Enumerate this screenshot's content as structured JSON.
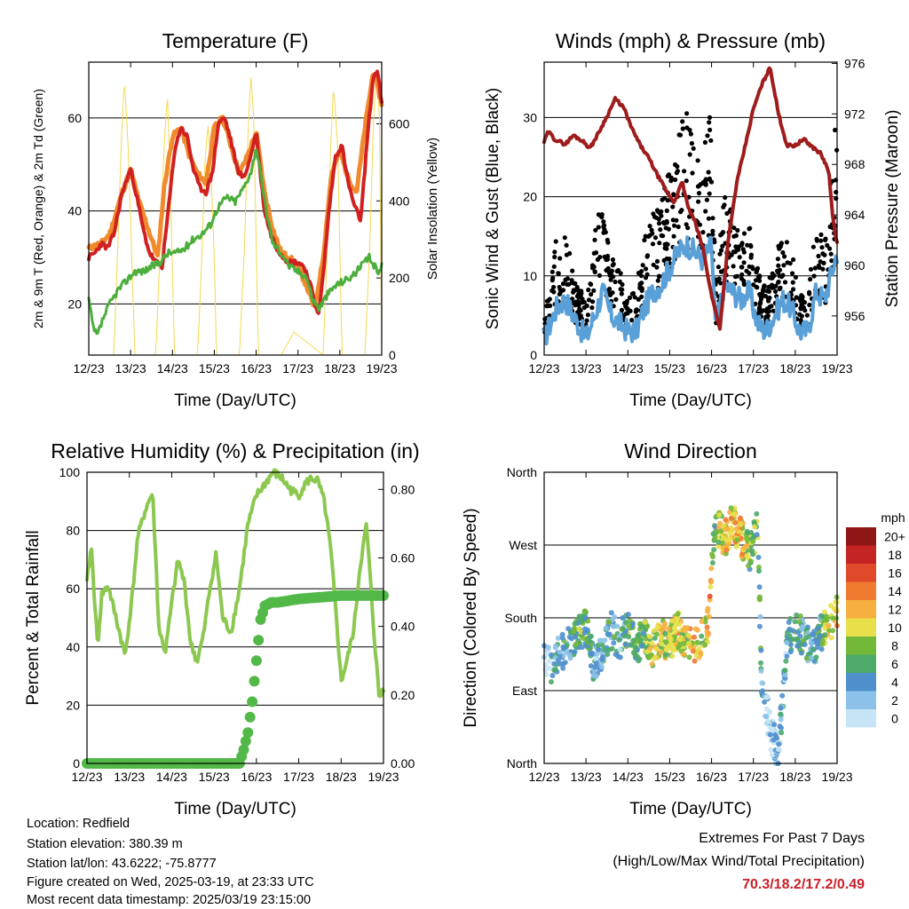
{
  "colors": {
    "temp_2m": "#d02020",
    "temp_9m": "#f08a2c",
    "dewpoint": "#4cae3c",
    "insolation": "#f5d850",
    "wind_sonic": "#5aa0d8",
    "wind_gust": "#000000",
    "pressure": "#9e1c1c",
    "rh": "#8cc850",
    "precip": "#52b848"
  },
  "panels": {
    "temperature": {
      "title": "Temperature (F)",
      "xlabel": "Time (Day/UTC)",
      "ylabel_left": "2m & 9m T (Red, Orange) & 2m Td (Green)",
      "ylabel_right": "Solar Insolation (Yellow)"
    },
    "winds": {
      "title": "Winds (mph) & Pressure (mb)",
      "xlabel": "Time (Day/UTC)",
      "ylabel_left": "Sonic Wind & Gust (Blue, Black)",
      "ylabel_right": "Station Pressure (Maroon)"
    },
    "humidity": {
      "title": "Relative Humidity (%) & Precipitation (in)",
      "xlabel": "Time (Day/UTC)",
      "ylabel_left": "Percent & Total Rainfall"
    },
    "direction": {
      "title": "Wind Direction",
      "xlabel": "Time (Day/UTC)",
      "ylabel_left": "Direction (Colored By Speed)",
      "legend_title": "mph"
    }
  },
  "station": {
    "location": "Location: Redfield",
    "elevation": "Station elevation: 380.39 m",
    "latlon": "Station lat/lon: 43.6222; -75.8777",
    "created": "Figure created on Wed, 2025-03-19, at 23:33 UTC",
    "latest": "Most recent data timestamp: 2025/03/19 23:15:00"
  },
  "extremes": {
    "line1": "Extremes For Past 7 Days",
    "line2": "(High/Low/Max Wind/Total Precipitation)",
    "values": "70.3/18.2/17.2/0.49"
  },
  "chart_data": [
    {
      "id": "temperature",
      "type": "line",
      "x_ticks": [
        "12/23",
        "13/23",
        "14/23",
        "15/23",
        "16/23",
        "17/23",
        "18/23",
        "19/23"
      ],
      "xlim": [
        0,
        7
      ],
      "ylim": [
        9,
        72
      ],
      "y_ticks": [
        20,
        40,
        60
      ],
      "y2lim": [
        0,
        760
      ],
      "y2_ticks": [
        0,
        200,
        400,
        600
      ],
      "series": [
        {
          "key": "temp_9m",
          "axis": "left",
          "width": 4,
          "x": [
            0,
            0.3,
            0.5,
            0.8,
            1.0,
            1.2,
            1.35,
            1.5,
            1.65,
            1.8,
            2.0,
            2.2,
            2.4,
            2.6,
            2.8,
            3.0,
            3.2,
            3.4,
            3.6,
            3.8,
            4.0,
            4.2,
            4.4,
            4.6,
            4.8,
            5.0,
            5.2,
            5.4,
            5.6,
            5.8,
            6.0,
            6.2,
            6.4,
            6.6,
            6.8,
            7.0
          ],
          "y": [
            32,
            33,
            35,
            44,
            49,
            42,
            38,
            34,
            30,
            45,
            56,
            58,
            52,
            48,
            46,
            58,
            60,
            54,
            48,
            52,
            57,
            44,
            36,
            31,
            30,
            28,
            24,
            19,
            30,
            48,
            53,
            47,
            44,
            58,
            70,
            63
          ]
        },
        {
          "key": "temp_2m",
          "axis": "left",
          "width": 4,
          "x": [
            0,
            0.15,
            0.3,
            0.45,
            0.6,
            0.8,
            1.0,
            1.15,
            1.3,
            1.45,
            1.6,
            1.75,
            1.9,
            2.05,
            2.2,
            2.35,
            2.5,
            2.65,
            2.8,
            2.95,
            3.1,
            3.25,
            3.4,
            3.55,
            3.7,
            3.85,
            4.0,
            4.1,
            4.2,
            4.35,
            4.5,
            4.65,
            4.8,
            5.0,
            5.15,
            5.3,
            5.4,
            5.5,
            5.6,
            5.75,
            5.9,
            6.05,
            6.2,
            6.35,
            6.5,
            6.65,
            6.8,
            6.9,
            7.0
          ],
          "y": [
            30,
            31,
            33,
            32,
            35,
            44,
            49,
            43,
            36,
            31,
            29,
            28,
            40,
            53,
            58,
            56,
            49,
            45,
            44,
            48,
            59,
            60,
            55,
            49,
            47,
            51,
            57,
            48,
            40,
            35,
            32,
            30,
            29,
            29,
            28,
            24,
            20,
            18,
            26,
            41,
            52,
            54,
            46,
            41,
            38,
            55,
            69,
            70,
            63
          ]
        },
        {
          "key": "dewpoint",
          "axis": "left",
          "width": 3,
          "x": [
            0,
            0.1,
            0.2,
            0.35,
            0.5,
            0.7,
            0.9,
            1.1,
            1.3,
            1.5,
            1.7,
            1.9,
            2.1,
            2.3,
            2.5,
            2.7,
            2.9,
            3.1,
            3.3,
            3.5,
            3.7,
            3.9,
            4.0,
            4.2,
            4.4,
            4.6,
            4.8,
            5.0,
            5.2,
            5.35,
            5.5,
            5.7,
            5.9,
            6.1,
            6.3,
            6.5,
            6.7,
            6.9,
            7.0
          ],
          "y": [
            21,
            15,
            13,
            17,
            20,
            23,
            25,
            27,
            27,
            28,
            29,
            31,
            31,
            32,
            34,
            35,
            37,
            41,
            43,
            42,
            45,
            49,
            54,
            42,
            33,
            31,
            28,
            27,
            26,
            21,
            19,
            22,
            24,
            25,
            26,
            28,
            30,
            27,
            28
          ]
        },
        {
          "key": "insolation",
          "axis": "right",
          "width": 1,
          "x": [
            0,
            0.6,
            0.7,
            0.78,
            0.85,
            0.95,
            1.05,
            1.1,
            1.6,
            1.72,
            1.8,
            1.88,
            1.95,
            2.05,
            2.6,
            2.7,
            2.78,
            2.85,
            2.92,
            3.0,
            3.05,
            3.6,
            3.72,
            3.8,
            3.87,
            3.95,
            4.05,
            4.6,
            4.9,
            5.6,
            5.7,
            5.78,
            5.85,
            5.95,
            6.05,
            6.6,
            6.72,
            6.8,
            6.88,
            6.95,
            7.0
          ],
          "y": [
            0,
            0,
            300,
            560,
            720,
            520,
            180,
            0,
            0,
            320,
            540,
            680,
            430,
            0,
            0,
            250,
            510,
            600,
            480,
            250,
            0,
            0,
            280,
            560,
            730,
            600,
            0,
            0,
            60,
            0,
            280,
            540,
            700,
            540,
            0,
            0,
            300,
            600,
            760,
            600,
            0
          ]
        }
      ]
    },
    {
      "id": "winds",
      "type": "scatter+line",
      "x_ticks": [
        "12/23",
        "13/23",
        "14/23",
        "15/23",
        "16/23",
        "17/23",
        "18/23",
        "19/23"
      ],
      "xlim": [
        0,
        7
      ],
      "ylim": [
        0,
        37
      ],
      "y_ticks": [
        0,
        10,
        20,
        30
      ],
      "y2lim": [
        952.9,
        976.1
      ],
      "y2_ticks": [
        956,
        960,
        964,
        968,
        972,
        976
      ],
      "series": [
        {
          "key": "wind_gust",
          "axis": "left",
          "name": "Gust",
          "x": [
            0,
            0.15,
            0.3,
            0.5,
            0.7,
            0.9,
            1.0,
            1.2,
            1.4,
            1.6,
            1.8,
            2.0,
            2.2,
            2.4,
            2.6,
            2.8,
            3.0,
            3.2,
            3.4,
            3.6,
            3.8,
            4.0,
            4.1,
            4.3,
            4.5,
            4.7,
            4.9,
            5.1,
            5.3,
            5.5,
            5.7,
            5.9,
            6.1,
            6.3,
            6.5,
            6.7,
            6.9,
            7.0
          ],
          "y": [
            3,
            7,
            11,
            12,
            7,
            6,
            4,
            11,
            15,
            9,
            8,
            5,
            6,
            11,
            13,
            14,
            17,
            21,
            22,
            20,
            19,
            23,
            6,
            15,
            13,
            11,
            12,
            8,
            6,
            9,
            11,
            10,
            6,
            5,
            13,
            10,
            18,
            26
          ]
        },
        {
          "key": "wind_sonic",
          "axis": "left",
          "name": "Sonic",
          "x": [
            0,
            0.15,
            0.3,
            0.5,
            0.7,
            0.9,
            1.0,
            1.2,
            1.4,
            1.6,
            1.8,
            2.0,
            2.2,
            2.4,
            2.6,
            2.8,
            3.0,
            3.2,
            3.4,
            3.6,
            3.8,
            4.0,
            4.1,
            4.3,
            4.5,
            4.7,
            4.9,
            5.1,
            5.3,
            5.5,
            5.7,
            5.9,
            6.1,
            6.3,
            6.5,
            6.7,
            6.9,
            7.0
          ],
          "y": [
            2,
            4,
            6,
            7,
            5,
            3,
            2,
            5,
            8,
            5,
            4,
            3,
            3,
            6,
            8,
            9,
            11,
            13,
            14,
            13,
            12,
            14,
            3,
            9,
            8,
            7,
            8,
            4,
            3,
            5,
            7,
            6,
            3,
            3,
            8,
            7,
            11,
            13
          ]
        },
        {
          "key": "pressure",
          "axis": "right",
          "name": "Pressure",
          "x": [
            0,
            0.1,
            0.25,
            0.5,
            0.7,
            0.9,
            1.1,
            1.3,
            1.5,
            1.7,
            1.9,
            2.1,
            2.3,
            2.5,
            2.7,
            2.9,
            3.1,
            3.3,
            3.45,
            3.6,
            3.8,
            4.0,
            4.2,
            4.4,
            4.6,
            4.8,
            5.0,
            5.2,
            5.4,
            5.6,
            5.8,
            6.0,
            6.2,
            6.4,
            6.6,
            6.8,
            6.9,
            7.0
          ],
          "y": [
            969.8,
            970.6,
            970,
            969.6,
            970.3,
            969.9,
            969.3,
            970.5,
            971.8,
            973.2,
            972.5,
            970.8,
            969.5,
            968.5,
            967.2,
            966,
            965,
            966.6,
            964.5,
            963.5,
            961.3,
            957.6,
            955,
            962,
            966.5,
            969.4,
            972.4,
            974.3,
            975.7,
            972,
            969.5,
            969.5,
            970,
            969.4,
            968.9,
            967.5,
            963.6,
            961.8
          ]
        }
      ]
    },
    {
      "id": "humidity",
      "type": "line",
      "x_ticks": [
        "12/23",
        "13/23",
        "14/23",
        "15/23",
        "16/23",
        "17/23",
        "18/23",
        "19/23"
      ],
      "xlim": [
        0,
        7
      ],
      "ylim": [
        0,
        100
      ],
      "y_ticks": [
        0,
        20,
        40,
        60,
        80,
        100
      ],
      "y2lim": [
        0,
        0.85
      ],
      "y2_ticks": [
        0.0,
        0.2,
        0.4,
        0.6,
        0.8
      ],
      "series": [
        {
          "key": "rh",
          "axis": "left",
          "width": 4,
          "x": [
            0,
            0.1,
            0.25,
            0.35,
            0.5,
            0.7,
            0.9,
            1.05,
            1.2,
            1.4,
            1.55,
            1.7,
            1.85,
            2.0,
            2.15,
            2.3,
            2.45,
            2.6,
            2.75,
            2.9,
            3.05,
            3.2,
            3.4,
            3.6,
            3.8,
            4.0,
            4.2,
            4.4,
            4.6,
            4.8,
            5.0,
            5.15,
            5.3,
            5.45,
            5.6,
            5.75,
            5.9,
            6.0,
            6.15,
            6.3,
            6.45,
            6.6,
            6.75,
            6.9,
            7.0
          ],
          "y": [
            62,
            75,
            40,
            58,
            61,
            49,
            37,
            55,
            78,
            88,
            93,
            46,
            38,
            55,
            70,
            62,
            41,
            35,
            44,
            60,
            72,
            50,
            45,
            60,
            82,
            92,
            96,
            100,
            98,
            94,
            92,
            96,
            98,
            97,
            90,
            74,
            48,
            28,
            36,
            46,
            68,
            82,
            50,
            22,
            26
          ]
        },
        {
          "key": "precip",
          "axis": "right",
          "width": 0,
          "x": [
            0,
            1,
            2,
            3,
            3.6,
            3.7,
            3.8,
            3.9,
            4.0,
            4.1,
            4.2,
            4.35,
            4.5,
            5,
            6,
            7
          ],
          "y": [
            0,
            0,
            0,
            0,
            0,
            0.04,
            0.09,
            0.18,
            0.3,
            0.42,
            0.46,
            0.47,
            0.47,
            0.48,
            0.49,
            0.49
          ]
        }
      ]
    },
    {
      "id": "direction",
      "type": "scatter",
      "x_ticks": [
        "12/23",
        "13/23",
        "14/23",
        "15/23",
        "16/23",
        "17/23",
        "18/23",
        "19/23"
      ],
      "xlim": [
        0,
        7
      ],
      "ylim": [
        0,
        360
      ],
      "y_ticks": [
        "North",
        "East",
        "South",
        "West",
        "North"
      ],
      "y_tick_values": [
        0,
        90,
        180,
        270,
        360
      ],
      "color_scale": {
        "labels": [
          "0",
          "2",
          "4",
          "6",
          "8",
          "10",
          "12",
          "14",
          "16",
          "18",
          "20+"
        ],
        "colors": [
          "#c6e4f5",
          "#8cc2ea",
          "#4f8fcc",
          "#4daa68",
          "#74b83a",
          "#e8e04a",
          "#f7b040",
          "#f07a30",
          "#e04a2a",
          "#c42424",
          "#8e1616"
        ]
      },
      "series": [
        {
          "name": "Direction",
          "x": [
            0.1,
            0.2,
            0.3,
            0.5,
            0.6,
            0.8,
            1.0,
            1.2,
            1.4,
            1.6,
            1.8,
            2.0,
            2.2,
            2.4,
            2.6,
            2.8,
            3.0,
            3.2,
            3.4,
            3.6,
            3.8,
            3.95,
            4.05,
            4.2,
            4.3,
            4.5,
            4.7,
            4.9,
            5.1,
            5.2,
            5.4,
            5.6,
            5.8,
            6.0,
            6.2,
            6.4,
            6.6,
            6.8,
            7.0
          ],
          "y": [
            130,
            110,
            135,
            140,
            150,
            160,
            170,
            120,
            135,
            165,
            150,
            170,
            145,
            160,
            140,
            155,
            150,
            165,
            150,
            145,
            155,
            180,
            285,
            290,
            275,
            300,
            280,
            260,
            290,
            100,
            40,
            10,
            150,
            170,
            155,
            140,
            160,
            170,
            185
          ],
          "speed": [
            2,
            3,
            4,
            5,
            4,
            6,
            7,
            3,
            4,
            5,
            3,
            7,
            6,
            8,
            9,
            10,
            8,
            11,
            9,
            12,
            8,
            14,
            6,
            9,
            10,
            11,
            12,
            7,
            8,
            3,
            1,
            2,
            4,
            6,
            5,
            4,
            6,
            9,
            11
          ]
        }
      ]
    }
  ]
}
